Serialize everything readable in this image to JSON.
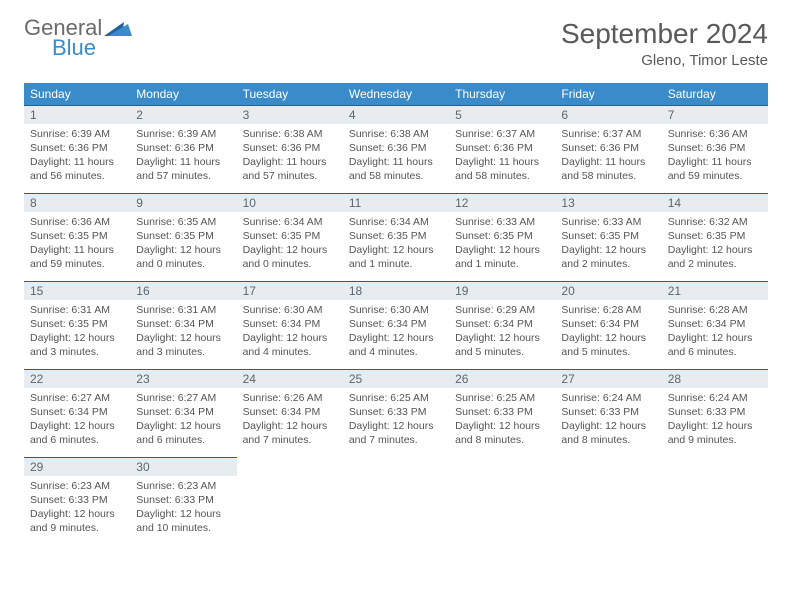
{
  "brand": {
    "general": "General",
    "blue": "Blue"
  },
  "title": "September 2024",
  "location": "Gleno, Timor Leste",
  "colors": {
    "header_bg": "#3a8bc9",
    "daynum_bg": "#e9ecef",
    "row_border": "#2a5f8a",
    "text": "#555555"
  },
  "weekdays": [
    "Sunday",
    "Monday",
    "Tuesday",
    "Wednesday",
    "Thursday",
    "Friday",
    "Saturday"
  ],
  "days": [
    {
      "n": "1",
      "sunrise": "6:39 AM",
      "sunset": "6:36 PM",
      "daylight": "11 hours and 56 minutes."
    },
    {
      "n": "2",
      "sunrise": "6:39 AM",
      "sunset": "6:36 PM",
      "daylight": "11 hours and 57 minutes."
    },
    {
      "n": "3",
      "sunrise": "6:38 AM",
      "sunset": "6:36 PM",
      "daylight": "11 hours and 57 minutes."
    },
    {
      "n": "4",
      "sunrise": "6:38 AM",
      "sunset": "6:36 PM",
      "daylight": "11 hours and 58 minutes."
    },
    {
      "n": "5",
      "sunrise": "6:37 AM",
      "sunset": "6:36 PM",
      "daylight": "11 hours and 58 minutes."
    },
    {
      "n": "6",
      "sunrise": "6:37 AM",
      "sunset": "6:36 PM",
      "daylight": "11 hours and 58 minutes."
    },
    {
      "n": "7",
      "sunrise": "6:36 AM",
      "sunset": "6:36 PM",
      "daylight": "11 hours and 59 minutes."
    },
    {
      "n": "8",
      "sunrise": "6:36 AM",
      "sunset": "6:35 PM",
      "daylight": "11 hours and 59 minutes."
    },
    {
      "n": "9",
      "sunrise": "6:35 AM",
      "sunset": "6:35 PM",
      "daylight": "12 hours and 0 minutes."
    },
    {
      "n": "10",
      "sunrise": "6:34 AM",
      "sunset": "6:35 PM",
      "daylight": "12 hours and 0 minutes."
    },
    {
      "n": "11",
      "sunrise": "6:34 AM",
      "sunset": "6:35 PM",
      "daylight": "12 hours and 1 minute."
    },
    {
      "n": "12",
      "sunrise": "6:33 AM",
      "sunset": "6:35 PM",
      "daylight": "12 hours and 1 minute."
    },
    {
      "n": "13",
      "sunrise": "6:33 AM",
      "sunset": "6:35 PM",
      "daylight": "12 hours and 2 minutes."
    },
    {
      "n": "14",
      "sunrise": "6:32 AM",
      "sunset": "6:35 PM",
      "daylight": "12 hours and 2 minutes."
    },
    {
      "n": "15",
      "sunrise": "6:31 AM",
      "sunset": "6:35 PM",
      "daylight": "12 hours and 3 minutes."
    },
    {
      "n": "16",
      "sunrise": "6:31 AM",
      "sunset": "6:34 PM",
      "daylight": "12 hours and 3 minutes."
    },
    {
      "n": "17",
      "sunrise": "6:30 AM",
      "sunset": "6:34 PM",
      "daylight": "12 hours and 4 minutes."
    },
    {
      "n": "18",
      "sunrise": "6:30 AM",
      "sunset": "6:34 PM",
      "daylight": "12 hours and 4 minutes."
    },
    {
      "n": "19",
      "sunrise": "6:29 AM",
      "sunset": "6:34 PM",
      "daylight": "12 hours and 5 minutes."
    },
    {
      "n": "20",
      "sunrise": "6:28 AM",
      "sunset": "6:34 PM",
      "daylight": "12 hours and 5 minutes."
    },
    {
      "n": "21",
      "sunrise": "6:28 AM",
      "sunset": "6:34 PM",
      "daylight": "12 hours and 6 minutes."
    },
    {
      "n": "22",
      "sunrise": "6:27 AM",
      "sunset": "6:34 PM",
      "daylight": "12 hours and 6 minutes."
    },
    {
      "n": "23",
      "sunrise": "6:27 AM",
      "sunset": "6:34 PM",
      "daylight": "12 hours and 6 minutes."
    },
    {
      "n": "24",
      "sunrise": "6:26 AM",
      "sunset": "6:34 PM",
      "daylight": "12 hours and 7 minutes."
    },
    {
      "n": "25",
      "sunrise": "6:25 AM",
      "sunset": "6:33 PM",
      "daylight": "12 hours and 7 minutes."
    },
    {
      "n": "26",
      "sunrise": "6:25 AM",
      "sunset": "6:33 PM",
      "daylight": "12 hours and 8 minutes."
    },
    {
      "n": "27",
      "sunrise": "6:24 AM",
      "sunset": "6:33 PM",
      "daylight": "12 hours and 8 minutes."
    },
    {
      "n": "28",
      "sunrise": "6:24 AM",
      "sunset": "6:33 PM",
      "daylight": "12 hours and 9 minutes."
    },
    {
      "n": "29",
      "sunrise": "6:23 AM",
      "sunset": "6:33 PM",
      "daylight": "12 hours and 9 minutes."
    },
    {
      "n": "30",
      "sunrise": "6:23 AM",
      "sunset": "6:33 PM",
      "daylight": "12 hours and 10 minutes."
    }
  ],
  "labels": {
    "sunrise": "Sunrise:",
    "sunset": "Sunset:",
    "daylight": "Daylight:"
  }
}
